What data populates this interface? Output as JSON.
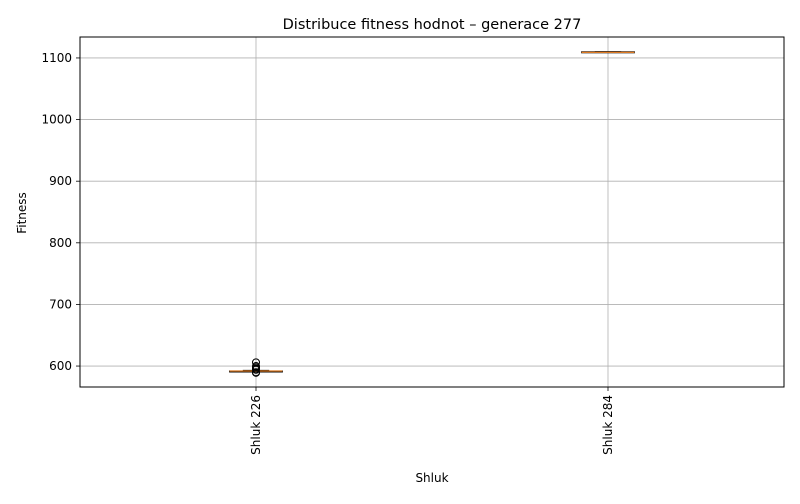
{
  "chart_data": {
    "type": "boxplot",
    "title": "Distribuce fitness hodnot – generace 277",
    "xlabel": "Shluk",
    "ylabel": "Fitness",
    "ylim": [
      566,
      1134
    ],
    "yticks": [
      600,
      700,
      800,
      900,
      1000,
      1100
    ],
    "grid": true,
    "categories": [
      "Shluk 226",
      "Shluk 284"
    ],
    "boxes": [
      {
        "category": "Shluk 226",
        "whisker_low": 591,
        "q1": 591,
        "median": 592,
        "q3": 592,
        "whisker_high": 593,
        "outliers": [
          589,
          590,
          594,
          596,
          598,
          600,
          606
        ]
      },
      {
        "category": "Shluk 284",
        "whisker_low": 1109,
        "q1": 1109,
        "median": 1109,
        "q3": 1110,
        "whisker_high": 1110,
        "outliers": []
      }
    ],
    "colors": {
      "box": "#000000",
      "median": "#e07b22",
      "grid": "#b0b0b0",
      "outlier": "#000000"
    }
  }
}
